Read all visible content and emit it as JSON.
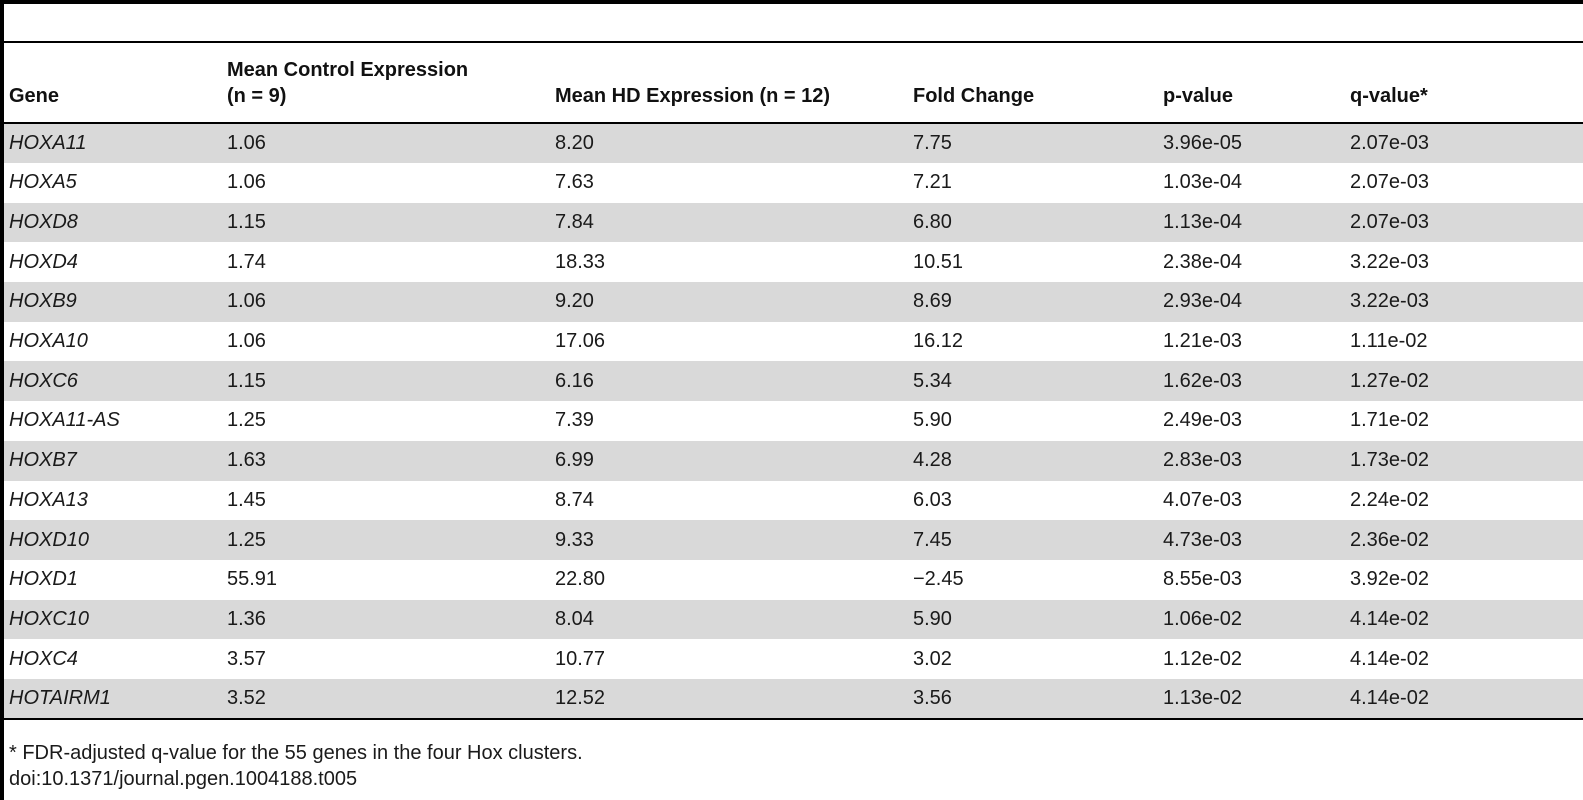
{
  "table": {
    "headers": [
      {
        "line1": "",
        "line2": "Gene"
      },
      {
        "line1": "Mean Control Expression",
        "line2": "(n = 9)"
      },
      {
        "line1": "",
        "line2": "Mean HD Expression (n = 12)"
      },
      {
        "line1": "",
        "line2": "Fold Change"
      },
      {
        "line1": "",
        "line2": "p-value"
      },
      {
        "line1": "",
        "line2": "q-value*"
      }
    ],
    "rows": [
      {
        "gene": "HOXA11",
        "control": "1.06",
        "hd": "8.20",
        "fold": "7.75",
        "p": "3.96e-05",
        "q": "2.07e-03"
      },
      {
        "gene": "HOXA5",
        "control": "1.06",
        "hd": "7.63",
        "fold": "7.21",
        "p": "1.03e-04",
        "q": "2.07e-03"
      },
      {
        "gene": "HOXD8",
        "control": "1.15",
        "hd": "7.84",
        "fold": "6.80",
        "p": "1.13e-04",
        "q": "2.07e-03"
      },
      {
        "gene": "HOXD4",
        "control": "1.74",
        "hd": "18.33",
        "fold": "10.51",
        "p": "2.38e-04",
        "q": "3.22e-03"
      },
      {
        "gene": "HOXB9",
        "control": "1.06",
        "hd": "9.20",
        "fold": "8.69",
        "p": "2.93e-04",
        "q": "3.22e-03"
      },
      {
        "gene": "HOXA10",
        "control": "1.06",
        "hd": "17.06",
        "fold": "16.12",
        "p": "1.21e-03",
        "q": "1.11e-02"
      },
      {
        "gene": "HOXC6",
        "control": "1.15",
        "hd": "6.16",
        "fold": "5.34",
        "p": "1.62e-03",
        "q": "1.27e-02"
      },
      {
        "gene": "HOXA11-AS",
        "control": "1.25",
        "hd": "7.39",
        "fold": "5.90",
        "p": "2.49e-03",
        "q": "1.71e-02"
      },
      {
        "gene": "HOXB7",
        "control": "1.63",
        "hd": "6.99",
        "fold": "4.28",
        "p": "2.83e-03",
        "q": "1.73e-02"
      },
      {
        "gene": "HOXA13",
        "control": "1.45",
        "hd": "8.74",
        "fold": "6.03",
        "p": "4.07e-03",
        "q": "2.24e-02"
      },
      {
        "gene": "HOXD10",
        "control": "1.25",
        "hd": "9.33",
        "fold": "7.45",
        "p": "4.73e-03",
        "q": "2.36e-02"
      },
      {
        "gene": "HOXD1",
        "control": "55.91",
        "hd": "22.80",
        "fold": "−2.45",
        "p": "8.55e-03",
        "q": "3.92e-02"
      },
      {
        "gene": "HOXC10",
        "control": "1.36",
        "hd": "8.04",
        "fold": "5.90",
        "p": "1.06e-02",
        "q": "4.14e-02"
      },
      {
        "gene": "HOXC4",
        "control": "3.57",
        "hd": "10.77",
        "fold": "3.02",
        "p": "1.12e-02",
        "q": "4.14e-02"
      },
      {
        "gene": "HOTAIRM1",
        "control": "3.52",
        "hd": "12.52",
        "fold": "3.56",
        "p": "1.13e-02",
        "q": "4.14e-02"
      }
    ],
    "row_shading": "#d9d9d9"
  },
  "footnote": {
    "note": "* FDR-adjusted q-value for the 55 genes in the four Hox clusters.",
    "doi": "doi:10.1371/journal.pgen.1004188.t005"
  }
}
